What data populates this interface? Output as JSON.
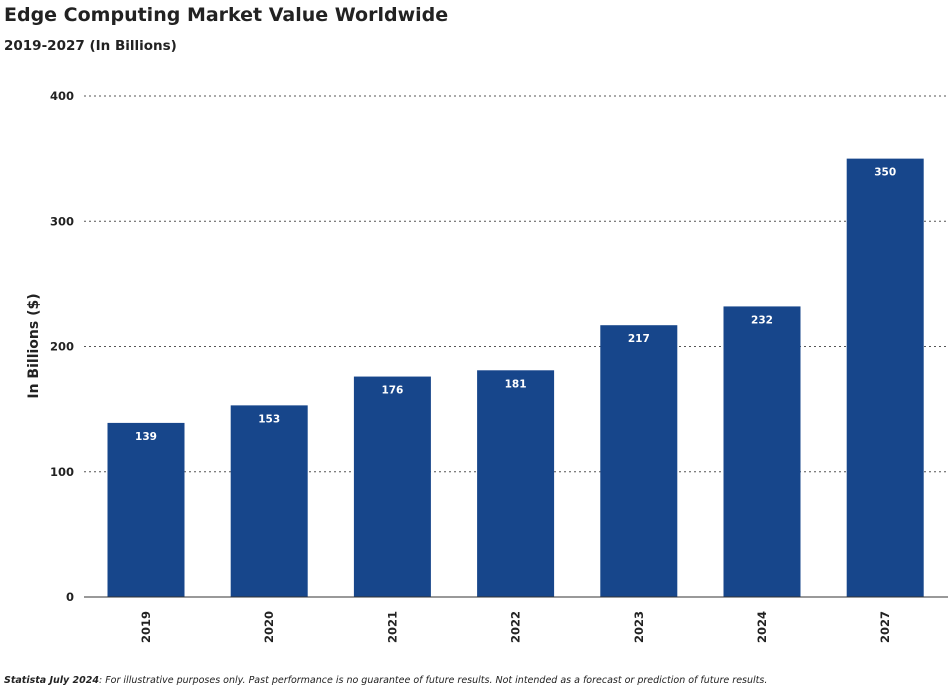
{
  "title": "Edge Computing Market Value Worldwide",
  "subtitle": "2019-2027 (In Billions)",
  "chart_data": {
    "type": "bar",
    "title": "Edge Computing Market Value Worldwide",
    "subtitle": "2019-2027 (In Billions)",
    "xlabel": "",
    "ylabel": "In Billions ($)",
    "categories": [
      "2019",
      "2020",
      "2021",
      "2022",
      "2023",
      "2024",
      "2027"
    ],
    "values": [
      139,
      153,
      176,
      181,
      217,
      232,
      350
    ],
    "data_labels": [
      "139",
      "153",
      "176",
      "181",
      "217",
      "232",
      "350"
    ],
    "ylim": [
      0,
      400
    ],
    "yticks": [
      0,
      100,
      200,
      300,
      400
    ],
    "ytick_labels": [
      "0",
      "100",
      "200",
      "300",
      "400"
    ],
    "grid": "horizontal dotted",
    "legend": "none",
    "colors": {
      "bar": "#17468b",
      "data_label": "#ffffff",
      "grid": "#555555",
      "axis": "#333333"
    }
  },
  "footnote": {
    "source": "Statista July 2024",
    "text": ": For illustrative purposes only. Past performance is no guarantee of future results. Not intended as a forecast or prediction of future results."
  }
}
